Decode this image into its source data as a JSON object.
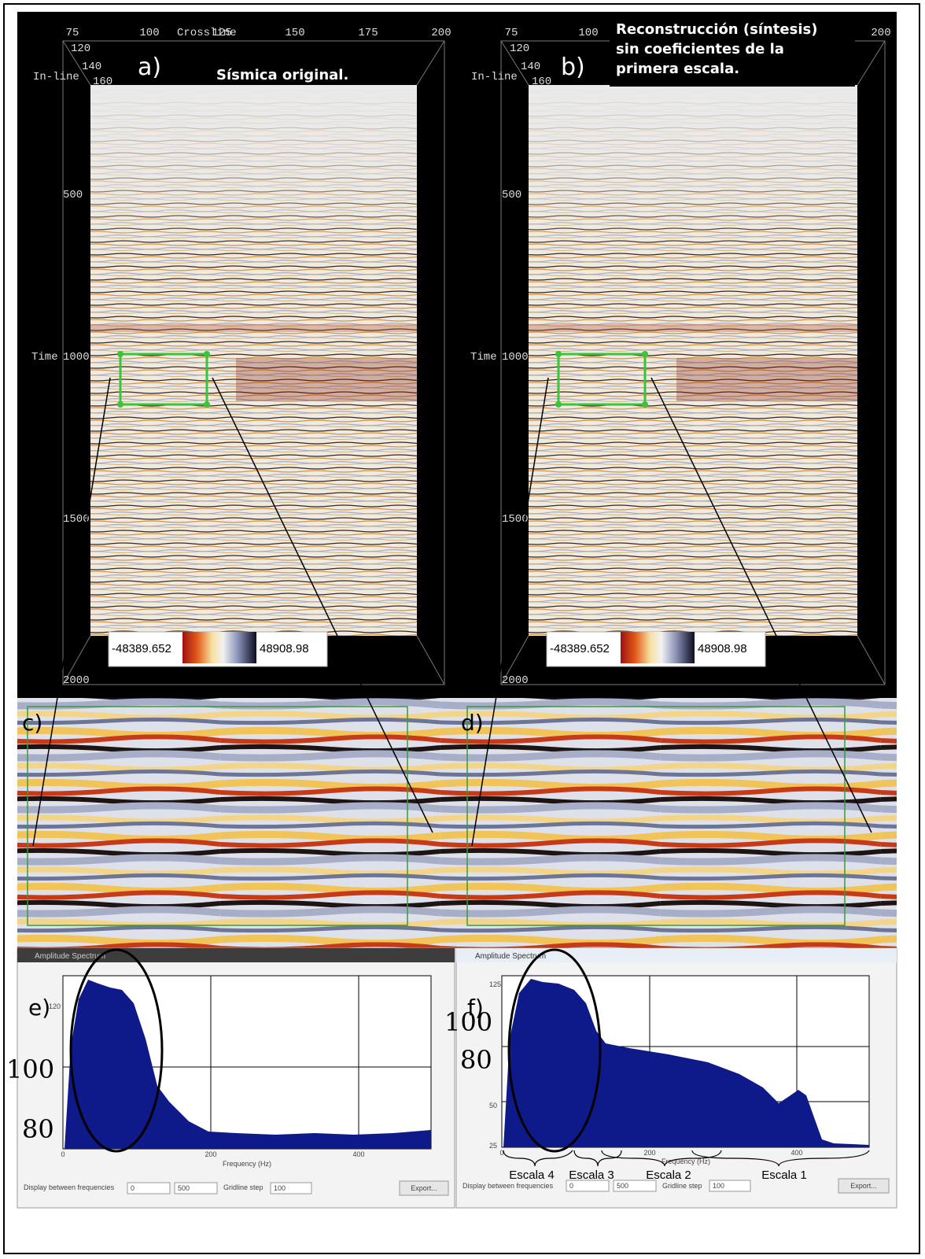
{
  "panel_a": {
    "label": "a)",
    "title": "Sísmica original.",
    "crossline_label": "Crossline",
    "crossline_ticks": [
      "75",
      "100",
      "125",
      "150",
      "175",
      "200"
    ],
    "inline_label": "In-line",
    "inline_ticks": [
      "120",
      "140",
      "160"
    ],
    "time_label": "Time",
    "time_ticks": [
      "500",
      "1000",
      "1500",
      "2000"
    ],
    "colorbar": {
      "min": "-48389.652",
      "max": "48908.98"
    }
  },
  "panel_b": {
    "label": "b)",
    "title_lines": [
      "Reconstrucción (síntesis)",
      "sin coeficientes de la",
      "primera escala."
    ],
    "crossline_ticks": [
      "75",
      "100",
      "200"
    ],
    "inline_label": "In-line",
    "inline_ticks": [
      "120",
      "140",
      "160"
    ],
    "time_label": "Time",
    "time_ticks": [
      "500",
      "1000",
      "1500",
      "2000"
    ],
    "colorbar": {
      "min": "-48389.652",
      "max": "48908.98"
    }
  },
  "panel_c": {
    "label": "c)"
  },
  "panel_d": {
    "label": "d)"
  },
  "panel_e": {
    "window_title": "Amplitude Spectrum",
    "label": "e)",
    "y_ticks": [
      "120"
    ],
    "overlay_ticks": [
      "100",
      "80"
    ],
    "x_ticks": [
      "0",
      "200",
      "400"
    ],
    "x_label": "Frequency (Hz)",
    "controls": {
      "display_label": "Display between frequencies",
      "from": "0",
      "to": "500",
      "gridline_label": "Gridline step",
      "gridline": "100",
      "export": "Export..."
    }
  },
  "panel_f": {
    "window_title": "Amplitude Spectrum",
    "label": "f)",
    "y_ticks": [
      "125",
      "50",
      "25"
    ],
    "overlay_ticks": [
      "100",
      "80"
    ],
    "x_ticks": [
      "0",
      "200",
      "400"
    ],
    "x_label": "Frequency (Hz)",
    "scales": [
      "Escala 4",
      "Escala 3",
      "Escala 2",
      "Escala 1"
    ],
    "controls": {
      "display_label": "Display between frequencies",
      "from": "0",
      "to": "500",
      "gridline_label": "Gridline step",
      "gridline": "100",
      "export": "Export..."
    }
  }
}
